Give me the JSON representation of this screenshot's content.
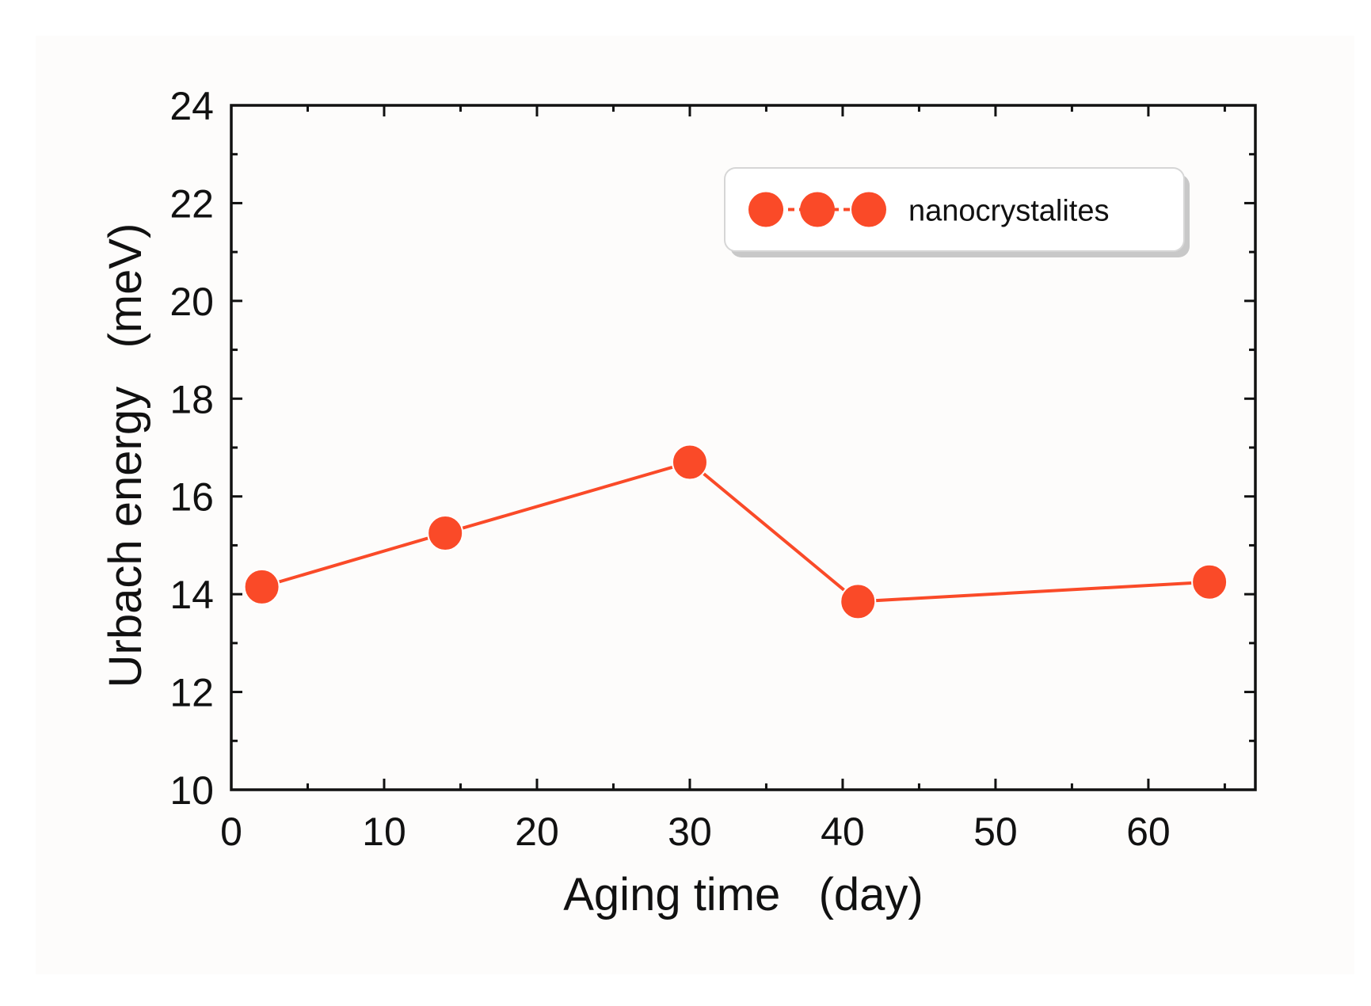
{
  "chart_data": {
    "type": "line",
    "xlabel": "Aging time   (day)",
    "ylabel": "Urbach energy   (meV)",
    "xlim": [
      0,
      67
    ],
    "ylim": [
      10,
      24
    ],
    "x_ticks": [
      0,
      10,
      20,
      30,
      40,
      50,
      60
    ],
    "y_ticks": [
      10,
      12,
      14,
      16,
      18,
      20,
      22,
      24
    ],
    "x_tick_labels": [
      "0",
      "10",
      "20",
      "30",
      "40",
      "50",
      "60"
    ],
    "y_tick_labels": [
      "10",
      "12",
      "14",
      "16",
      "18",
      "20",
      "22",
      "24"
    ],
    "legend_position": "top-right",
    "grid": false,
    "series": [
      {
        "name": "nanocrystalites",
        "color": "#fa4a28",
        "marker": "circle",
        "x": [
          2,
          14,
          30,
          41,
          64
        ],
        "y": [
          14.15,
          15.25,
          16.7,
          13.85,
          14.25
        ]
      }
    ]
  },
  "colors": {
    "series": "#fa4a28",
    "axis": "#111111",
    "background": "#fdfcfb",
    "legend_shadow": "#c8c8c8"
  }
}
